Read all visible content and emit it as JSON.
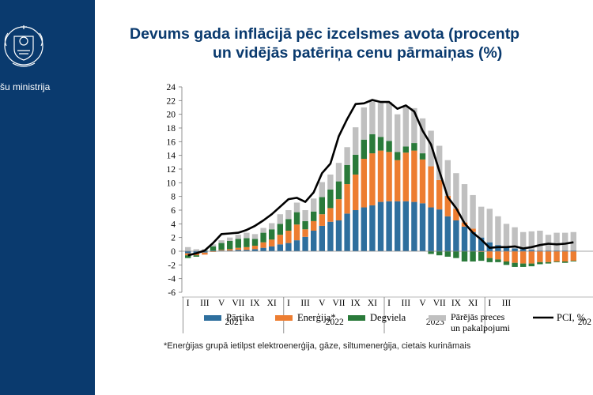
{
  "slide": {
    "ministry_label": "šu ministrija",
    "title_line1": "Devums gada inflācijā pēc izcelsmes avota (procentp",
    "title_line2": "un vidējās patēriņa cenu pārmaiņas (%)",
    "footnote": "*Enerģijas grupā ietilpst elektroenerģija, gāze, siltumenerģija, cietais kurināmais",
    "colors": {
      "sidebar": "#0a3a6e",
      "title": "#0a3a6e"
    }
  },
  "chart_data": {
    "type": "bar",
    "stacked": true,
    "ylim": [
      -6,
      24
    ],
    "yticks": [
      -6,
      -4,
      -2,
      0,
      2,
      4,
      6,
      8,
      10,
      12,
      14,
      16,
      18,
      20,
      22,
      24
    ],
    "month_labels": [
      "I",
      "III",
      "V",
      "VII",
      "IX",
      "XI",
      "I",
      "III",
      "V",
      "VII",
      "IX",
      "XI",
      "I",
      "III",
      "V",
      "VII",
      "IX",
      "XI",
      "I",
      "III"
    ],
    "year_labels": [
      "2021",
      "2022",
      "2023",
      "202"
    ],
    "series": [
      {
        "name": "Pārtika",
        "color": "#2e6f9e",
        "values": [
          -0.3,
          -0.3,
          -0.2,
          0.1,
          0.1,
          0.1,
          0.2,
          0.2,
          0.3,
          0.5,
          0.7,
          1.0,
          1.2,
          1.6,
          2.1,
          3.0,
          3.7,
          4.3,
          4.5,
          5.5,
          6.0,
          6.4,
          6.7,
          7.2,
          7.3,
          7.3,
          7.3,
          7.2,
          7.0,
          6.4,
          6.1,
          5.1,
          4.5,
          3.6,
          2.8,
          2.0,
          1.3,
          0.9,
          0.6,
          0.4,
          0.3,
          0.2,
          0.1,
          0.1,
          0.1,
          0.1,
          0.1
        ]
      },
      {
        "name": "Enerģija*",
        "color": "#ed7d31",
        "values": [
          -0.3,
          -0.3,
          -0.3,
          -0.1,
          0.1,
          0.2,
          0.3,
          0.4,
          0.5,
          0.8,
          1.0,
          1.4,
          1.8,
          2.3,
          1.1,
          1.4,
          1.7,
          2.0,
          3.1,
          4.3,
          5.2,
          7.1,
          7.6,
          7.5,
          7.2,
          6.0,
          7.1,
          7.5,
          6.4,
          6.0,
          4.3,
          3.0,
          1.7,
          0.6,
          0.5,
          -0.1,
          -1.0,
          -1.2,
          -1.5,
          -1.7,
          -1.8,
          -1.8,
          -1.6,
          -1.6,
          -1.5,
          -1.5,
          -1.4
        ]
      },
      {
        "name": "Degviela",
        "color": "#2a7a3a",
        "values": [
          -0.4,
          -0.2,
          0.1,
          0.6,
          1.0,
          1.2,
          1.3,
          1.3,
          1.0,
          1.4,
          1.5,
          1.6,
          1.7,
          1.8,
          1.2,
          1.4,
          2.5,
          2.7,
          2.6,
          2.8,
          2.9,
          2.8,
          2.8,
          2.0,
          1.6,
          1.2,
          0.9,
          1.1,
          0.9,
          -0.4,
          -0.6,
          -0.8,
          -1.0,
          -1.5,
          -1.5,
          -1.3,
          -0.6,
          -0.4,
          -0.5,
          -0.6,
          -0.5,
          -0.4,
          -0.3,
          -0.2,
          -0.1,
          -0.2,
          -0.1
        ]
      },
      {
        "name": "Pārējās preces un pakalpojumi",
        "color": "#c0c0c0",
        "values": [
          0.6,
          0.3,
          0.2,
          0.3,
          0.4,
          0.5,
          0.6,
          0.8,
          0.7,
          0.7,
          0.9,
          1.4,
          1.3,
          1.4,
          1.6,
          1.9,
          2.2,
          2.2,
          2.7,
          2.6,
          4.0,
          4.7,
          4.8,
          5.0,
          5.7,
          5.5,
          5.9,
          5.1,
          5.1,
          5.2,
          5.0,
          5.2,
          5.2,
          5.6,
          4.9,
          4.5,
          4.9,
          4.2,
          3.4,
          3.1,
          2.5,
          2.7,
          2.9,
          2.3,
          2.6,
          2.6,
          2.7
        ]
      }
    ],
    "line": {
      "name": "PCI, %",
      "color": "#000000",
      "values": [
        -0.6,
        -0.3,
        0.1,
        1.2,
        2.5,
        2.6,
        2.7,
        3.1,
        3.7,
        4.5,
        5.4,
        6.5,
        7.6,
        7.8,
        7.2,
        8.6,
        11.4,
        12.8,
        16.8,
        19.3,
        21.5,
        21.6,
        22.1,
        21.8,
        21.8,
        20.8,
        21.3,
        20.4,
        17.6,
        15.6,
        11.7,
        7.9,
        6.3,
        4.1,
        2.7,
        1.7,
        0.5,
        0.6,
        0.6,
        0.7,
        0.4,
        0.6,
        0.9,
        1.1,
        1.0,
        1.1,
        1.3
      ]
    },
    "legend_placement": "bottom",
    "grid": false
  }
}
